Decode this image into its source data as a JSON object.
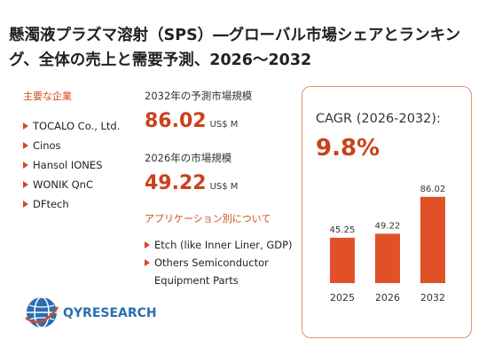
{
  "title": "懸濁液プラズマ溶射（SPS）―グローバル市場シェアとランキング、全体の売上と需要予測、2026～2032",
  "companies": {
    "heading": "主要な企業",
    "items": [
      "TOCALO Co., Ltd.",
      "Cinos",
      "Hansol IONES",
      "WONIK QnC",
      "DFtech"
    ]
  },
  "forecast": {
    "label_2032": "2032年の予測市場規模",
    "value_2032": "86.02",
    "label_2026": "2026年の市場規模",
    "value_2026": "49.22",
    "unit": "US$ M"
  },
  "applications": {
    "heading": "アプリケーション別について",
    "items": [
      "Etch (like Inner Liner, GDP)",
      "Others Semiconductor Equipment Parts"
    ]
  },
  "cagr": {
    "label": "CAGR (2026-2032):",
    "value": "9.8%"
  },
  "logo": {
    "text": "QYRESEARCH"
  },
  "colors": {
    "accent": "#c9421a",
    "bar": "#e0512a",
    "card_border": "#e6907a"
  },
  "chart_data": {
    "type": "bar",
    "categories": [
      "2025",
      "2026",
      "2032"
    ],
    "values": [
      45.25,
      49.22,
      86.02
    ],
    "data_labels": [
      "45.25",
      "49.22",
      "86.02"
    ],
    "ylim": [
      0,
      100
    ],
    "grid": false,
    "legend": "none"
  }
}
